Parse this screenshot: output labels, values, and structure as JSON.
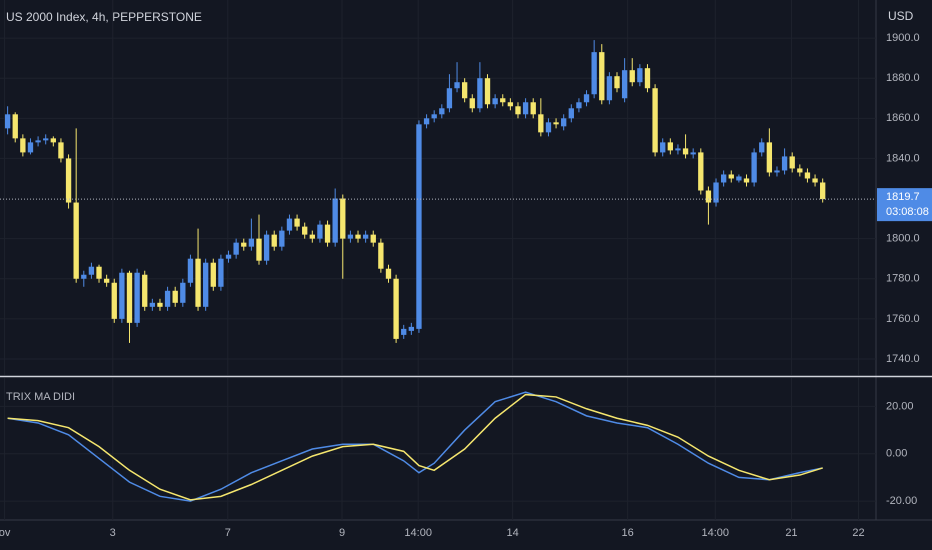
{
  "chart_data": [
    {
      "type": "candlestick",
      "title": "US 2000 Index, 4h, PEPPERSTONE",
      "currency": "USD",
      "countdown": "03:08:08",
      "up_color": "#4f8be6",
      "down_color": "#f5e66e",
      "x": [
        0,
        1,
        2,
        3,
        4,
        5,
        6,
        7,
        8,
        9,
        10,
        11,
        12,
        13,
        14,
        15,
        16,
        17,
        18,
        19,
        20,
        21,
        22,
        23,
        24,
        25,
        26,
        27,
        28,
        29,
        30,
        31,
        32,
        33,
        34,
        35,
        36,
        37,
        38,
        39,
        40,
        41,
        42,
        43,
        44,
        45,
        46,
        47,
        48,
        49,
        50,
        51,
        52,
        53,
        54,
        55,
        56,
        57,
        58,
        59,
        60,
        61,
        62,
        63,
        64,
        65,
        66,
        67,
        68,
        69,
        70,
        71,
        72,
        73,
        74,
        75,
        76,
        77,
        78,
        79,
        80,
        81,
        82,
        83,
        84,
        85,
        86,
        87,
        88,
        89,
        90,
        91,
        92,
        93,
        94,
        95,
        96,
        97,
        98,
        99,
        100,
        101,
        102,
        103,
        104,
        105,
        106,
        107
      ],
      "open": [
        1855,
        1862,
        1850,
        1843,
        1848,
        1849,
        1850,
        1848,
        1840,
        1818,
        1780,
        1782,
        1786,
        1780,
        1778,
        1760,
        1783,
        1758,
        1782,
        1766,
        1768,
        1766,
        1774,
        1768,
        1778,
        1790,
        1766,
        1788,
        1776,
        1790,
        1792,
        1798,
        1796,
        1800,
        1789,
        1802,
        1796,
        1804,
        1810,
        1806,
        1802,
        1800,
        1807,
        1798,
        1820,
        1800,
        1802,
        1800,
        1802,
        1798,
        1785,
        1780,
        1752,
        1754,
        1755,
        1857,
        1860,
        1862,
        1865,
        1875,
        1878,
        1870,
        1865,
        1880,
        1867,
        1870,
        1868,
        1866,
        1862,
        1868,
        1862,
        1853,
        1858,
        1856,
        1860,
        1865,
        1868,
        1872,
        1893,
        1869,
        1881,
        1870,
        1884,
        1878,
        1885,
        1875,
        1843,
        1848,
        1844,
        1845,
        1842,
        1843,
        1824,
        1818,
        1828,
        1832,
        1829,
        1830,
        1828,
        1843,
        1848,
        1833,
        1834,
        1841,
        1835,
        1833,
        1830,
        1828
      ],
      "high": [
        1866,
        1863,
        1852,
        1850,
        1851,
        1852,
        1851,
        1850,
        1842,
        1855,
        1784,
        1788,
        1787,
        1782,
        1780,
        1785,
        1784,
        1785,
        1784,
        1770,
        1770,
        1776,
        1776,
        1780,
        1792,
        1805,
        1790,
        1790,
        1792,
        1794,
        1800,
        1800,
        1810,
        1812,
        1804,
        1804,
        1806,
        1812,
        1812,
        1808,
        1804,
        1809,
        1809,
        1825,
        1822,
        1804,
        1804,
        1804,
        1804,
        1800,
        1787,
        1782,
        1757,
        1758,
        1859,
        1862,
        1864,
        1867,
        1882,
        1888,
        1880,
        1872,
        1888,
        1882,
        1872,
        1872,
        1870,
        1868,
        1870,
        1870,
        1870,
        1860,
        1860,
        1862,
        1867,
        1870,
        1874,
        1899,
        1897,
        1883,
        1883,
        1890,
        1890,
        1887,
        1887,
        1877,
        1850,
        1850,
        1847,
        1852,
        1845,
        1845,
        1826,
        1830,
        1834,
        1834,
        1832,
        1832,
        1845,
        1850,
        1855,
        1836,
        1845,
        1843,
        1837,
        1835,
        1832,
        1830
      ],
      "low": [
        1852,
        1848,
        1841,
        1842,
        1846,
        1847,
        1846,
        1838,
        1815,
        1778,
        1776,
        1780,
        1778,
        1776,
        1758,
        1758,
        1748,
        1756,
        1764,
        1764,
        1764,
        1764,
        1766,
        1766,
        1776,
        1764,
        1764,
        1774,
        1774,
        1788,
        1790,
        1794,
        1794,
        1787,
        1787,
        1794,
        1794,
        1802,
        1804,
        1800,
        1798,
        1798,
        1796,
        1796,
        1780,
        1798,
        1798,
        1798,
        1796,
        1783,
        1778,
        1748,
        1750,
        1752,
        1753,
        1855,
        1858,
        1860,
        1863,
        1873,
        1868,
        1863,
        1863,
        1865,
        1865,
        1866,
        1864,
        1860,
        1860,
        1860,
        1851,
        1851,
        1855,
        1854,
        1858,
        1863,
        1866,
        1870,
        1867,
        1867,
        1873,
        1868,
        1876,
        1876,
        1873,
        1841,
        1841,
        1842,
        1842,
        1840,
        1840,
        1822,
        1807,
        1816,
        1826,
        1828,
        1828,
        1826,
        1826,
        1841,
        1831,
        1831,
        1832,
        1833,
        1831,
        1828,
        1826,
        1818
      ],
      "close": [
        1862,
        1850,
        1843,
        1848,
        1849,
        1850,
        1848,
        1840,
        1818,
        1780,
        1782,
        1786,
        1780,
        1778,
        1760,
        1783,
        1758,
        1783,
        1766,
        1768,
        1766,
        1774,
        1768,
        1778,
        1790,
        1766,
        1788,
        1776,
        1790,
        1792,
        1798,
        1796,
        1800,
        1789,
        1802,
        1796,
        1804,
        1810,
        1806,
        1802,
        1800,
        1807,
        1798,
        1820,
        1800,
        1802,
        1800,
        1802,
        1798,
        1785,
        1780,
        1750,
        1755,
        1756,
        1857,
        1860,
        1862,
        1865,
        1875,
        1878,
        1870,
        1865,
        1880,
        1867,
        1870,
        1868,
        1866,
        1862,
        1868,
        1862,
        1853,
        1858,
        1857,
        1860,
        1865,
        1868,
        1872,
        1893,
        1869,
        1881,
        1875,
        1884,
        1878,
        1885,
        1875,
        1843,
        1848,
        1844,
        1845,
        1842,
        1843,
        1824,
        1818,
        1828,
        1832,
        1830,
        1831,
        1828,
        1843,
        1848,
        1833,
        1834,
        1841,
        1835,
        1833,
        1830,
        1828,
        1819.7
      ],
      "xlim": [
        -1,
        114
      ],
      "ylim": [
        1732,
        1919
      ],
      "yticks": [
        {
          "value": 1900,
          "label": "1900.0"
        },
        {
          "value": 1880,
          "label": "1880.0"
        },
        {
          "value": 1860,
          "label": "1860.0"
        },
        {
          "value": 1840,
          "label": "1840.0"
        },
        {
          "value": 1800,
          "label": "1800.0"
        },
        {
          "value": 1780,
          "label": "1780.0"
        },
        {
          "value": 1760,
          "label": "1760.0"
        },
        {
          "value": 1740,
          "label": "1740.0"
        }
      ],
      "xticks": [
        {
          "value": -0.4,
          "label": "ov"
        },
        {
          "value": 13.8,
          "label": "3"
        },
        {
          "value": 28.9,
          "label": "7"
        },
        {
          "value": 43.9,
          "label": "9"
        },
        {
          "value": 53.9,
          "label": "14:00"
        },
        {
          "value": 66.3,
          "label": "14"
        },
        {
          "value": 81.4,
          "label": "16"
        },
        {
          "value": 92.9,
          "label": "14:00"
        },
        {
          "value": 102.9,
          "label": "21"
        },
        {
          "value": 111.7,
          "label": "22"
        }
      ],
      "grid": true
    },
    {
      "type": "line",
      "title": "TRIX MA DIDI",
      "x": [
        0,
        4,
        8,
        12,
        16,
        20,
        24,
        28,
        32,
        36,
        40,
        44,
        48,
        52,
        54,
        56,
        60,
        64,
        68,
        72,
        76,
        80,
        84,
        88,
        92,
        96,
        100,
        104,
        107
      ],
      "series": [
        {
          "color": "#4f8be6",
          "values": [
            15,
            13,
            8,
            -2,
            -12,
            -18,
            -20,
            -15,
            -8,
            -3,
            2,
            4,
            4,
            -3,
            -8,
            -4,
            10,
            22,
            26,
            22,
            16,
            13,
            11,
            4,
            -4,
            -10,
            -11,
            -8,
            -6
          ]
        },
        {
          "color": "#f5e66e",
          "values": [
            15,
            14,
            11,
            3,
            -7,
            -15,
            -19.5,
            -18,
            -13,
            -7,
            -1,
            3,
            4,
            1,
            -5,
            -7,
            2,
            15,
            25,
            24,
            19,
            15,
            12,
            7,
            -1,
            -7,
            -11,
            -9,
            -6
          ]
        }
      ],
      "xlim": [
        -1,
        114
      ],
      "ylim": [
        -28,
        32
      ],
      "yticks": [
        {
          "value": 20,
          "label": "20.00"
        },
        {
          "value": 0,
          "label": "0.00"
        },
        {
          "value": -20,
          "label": "-20.00"
        }
      ],
      "grid": true
    }
  ]
}
